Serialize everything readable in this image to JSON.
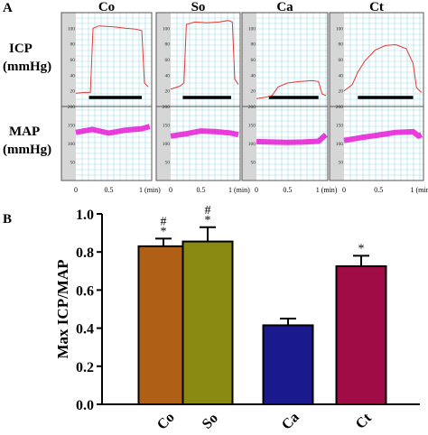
{
  "figure": {
    "panel_a_label": "A",
    "panel_b_label": "B",
    "row_label_icp": [
      "ICP",
      "(mmHg)"
    ],
    "row_label_map": [
      "MAP",
      "(mmHg)"
    ]
  },
  "colors": {
    "icp_trace": "#e53935",
    "map_trace": "#e81ad6",
    "grid": "#9edbe8",
    "panel_bg": "#ffffff",
    "left_strip": "#d6d6d6",
    "bar_co": "#b05f16",
    "bar_so": "#8a8a12",
    "bar_ca": "#1a1a8c",
    "bar_ct": "#a00d46"
  },
  "chart_data": [
    {
      "type": "line",
      "panel": "A-ICP",
      "groups": [
        "Co",
        "So",
        "Ca",
        "Ct"
      ],
      "x_ticks": [
        "0",
        "0.5",
        "1 (min)"
      ],
      "ylim": [
        0,
        120
      ],
      "y_ticks": [
        20,
        40,
        60,
        80,
        100
      ],
      "stimulation_bar": [
        0.2,
        1.0
      ],
      "series": [
        {
          "name": "Co",
          "x": [
            0,
            0.15,
            0.22,
            0.26,
            0.35,
            0.55,
            0.75,
            0.9,
            1.0,
            1.04,
            1.1
          ],
          "y": [
            17,
            18,
            18,
            100,
            103,
            102,
            100,
            99,
            97,
            30,
            25
          ]
        },
        {
          "name": "So",
          "x": [
            0,
            0.15,
            0.22,
            0.26,
            0.4,
            0.6,
            0.8,
            0.95,
            1.02,
            1.06,
            1.12
          ],
          "y": [
            22,
            26,
            30,
            105,
            108,
            107,
            108,
            110,
            108,
            35,
            28
          ]
        },
        {
          "name": "Ca",
          "x": [
            0,
            0.15,
            0.25,
            0.35,
            0.5,
            0.7,
            0.9,
            1.0,
            1.06,
            1.12
          ],
          "y": [
            10,
            12,
            14,
            25,
            30,
            32,
            33,
            32,
            16,
            14
          ]
        },
        {
          "name": "Ct",
          "x": [
            0,
            0.12,
            0.2,
            0.3,
            0.45,
            0.6,
            0.75,
            0.9,
            1.0,
            1.05,
            1.12
          ],
          "y": [
            20,
            28,
            44,
            58,
            72,
            78,
            79,
            74,
            55,
            24,
            18
          ]
        }
      ]
    },
    {
      "type": "line",
      "panel": "A-MAP",
      "groups": [
        "Co",
        "So",
        "Ca",
        "Ct"
      ],
      "x_ticks": [
        "0",
        "0.5",
        "1 (min)"
      ],
      "ylim": [
        0,
        200
      ],
      "y_ticks": [
        50,
        100,
        150,
        200
      ],
      "series": [
        {
          "name": "Co",
          "x": [
            0,
            0.25,
            0.5,
            0.75,
            1.0,
            1.12
          ],
          "y": [
            130,
            138,
            128,
            136,
            140,
            146
          ]
        },
        {
          "name": "So",
          "x": [
            0,
            0.25,
            0.5,
            0.75,
            1.0,
            1.12
          ],
          "y": [
            120,
            126,
            134,
            132,
            128,
            124
          ]
        },
        {
          "name": "Ca",
          "x": [
            0,
            0.25,
            0.5,
            0.75,
            1.0,
            1.12
          ],
          "y": [
            105,
            104,
            103,
            104,
            106,
            124
          ]
        },
        {
          "name": "Ct",
          "x": [
            0,
            0.25,
            0.5,
            0.75,
            1.0,
            1.08,
            1.12
          ],
          "y": [
            108,
            116,
            123,
            130,
            132,
            120,
            124
          ]
        }
      ]
    },
    {
      "type": "bar",
      "panel": "B",
      "categories": [
        "Co",
        "So",
        "Ca",
        "Ct"
      ],
      "values": [
        0.83,
        0.855,
        0.415,
        0.725
      ],
      "errors": [
        0.04,
        0.075,
        0.035,
        0.055
      ],
      "significance": [
        "#\n*",
        "#\n*",
        "",
        "*"
      ],
      "ylabel": "Max ICP/MAP",
      "ylim": [
        0,
        1.0
      ],
      "y_ticks": [
        "0.0",
        "0.2",
        "0.4",
        "0.6",
        "0.8",
        "1.0"
      ]
    }
  ]
}
